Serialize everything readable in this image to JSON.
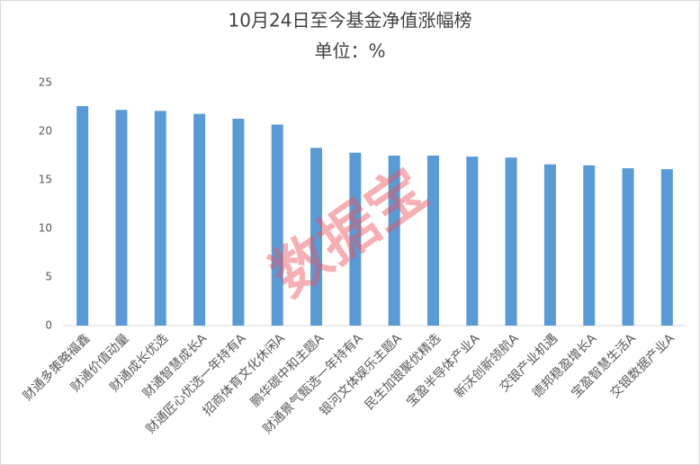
{
  "chart_data": {
    "type": "bar",
    "title": "10月24日至今基金净值涨幅榜",
    "subtitle": "单位：%",
    "watermark": "数据宝",
    "categories": [
      "财通多策略福鑫",
      "财通价值动量",
      "财通成长优选",
      "财通智慧成长A",
      "财通匠心优选一年持有A",
      "招商体育文化休闲A",
      "鹏华碳中和主题A",
      "财通景气甄选一年持有A",
      "银河文体娱乐主题A",
      "民生加银聚优精选",
      "宝盈半导体产业A",
      "新沃创新领航A",
      "交银产业机遇",
      "德邦稳盈增长A",
      "宝盈智慧生活A",
      "交银数据产业A"
    ],
    "values": [
      22.6,
      22.2,
      22.1,
      21.8,
      21.3,
      20.7,
      18.3,
      17.8,
      17.5,
      17.5,
      17.4,
      17.3,
      16.6,
      16.5,
      16.2,
      16.1
    ],
    "color": "#5b9bd5",
    "ylim": [
      0,
      25
    ],
    "yticks": [
      0,
      5,
      10,
      15,
      20,
      25
    ],
    "grid": false
  }
}
